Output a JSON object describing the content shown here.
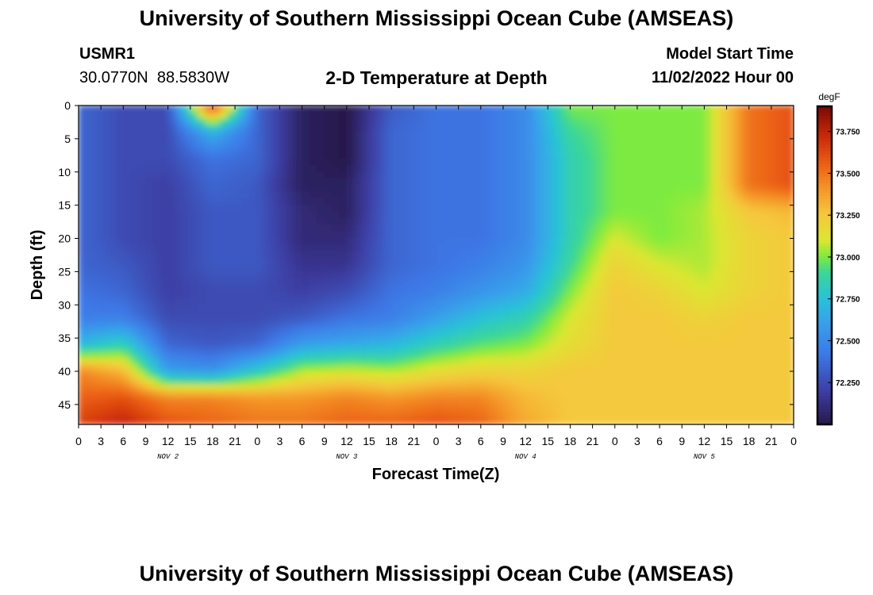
{
  "page": {
    "title": "University of Southern Mississippi Ocean Cube (AMSEAS)",
    "footer_title": "University of Southern Mississippi Ocean Cube (AMSEAS)",
    "station_id": "USMR1",
    "station_coords": "30.0770N  88.5830W",
    "plot_title": "2-D Temperature at Depth",
    "model_start_label": "Model Start Time",
    "model_start_value": "11/02/2022 Hour 00"
  },
  "chart_data": {
    "type": "heatmap",
    "title": "2-D Temperature at Depth",
    "xlabel": "Forecast Time(Z)",
    "ylabel": "Depth (ft)",
    "x_unit": "forecast hour",
    "xlim": [
      0,
      96
    ],
    "ylim": [
      48,
      0
    ],
    "x_tick_labels": [
      "0",
      "3",
      "6",
      "9",
      "12",
      "15",
      "18",
      "21",
      "0",
      "3",
      "6",
      "9",
      "12",
      "15",
      "18",
      "21",
      "0",
      "3",
      "6",
      "9",
      "12",
      "15",
      "18",
      "21",
      "0",
      "3",
      "6",
      "9",
      "12",
      "15",
      "18",
      "21",
      "0"
    ],
    "day_labels": [
      "NOV 2",
      "NOV 3",
      "NOV 4",
      "NOV 5"
    ],
    "y_ticks": [
      0,
      5,
      10,
      15,
      20,
      25,
      30,
      35,
      40,
      45
    ],
    "colorbar": {
      "label": "degF",
      "min": 72.0,
      "max": 73.9,
      "ticks": [
        73.75,
        73.5,
        73.25,
        73.0,
        72.75,
        72.5,
        72.25
      ],
      "tick_labels": [
        "73.750",
        "73.500",
        "73.250",
        "73.000",
        "72.750",
        "72.500",
        "72.250"
      ]
    },
    "grid": false,
    "depths_ft": [
      0,
      4,
      8,
      12,
      16,
      20,
      24,
      28,
      32,
      36,
      40,
      44,
      48
    ],
    "hours": [
      0,
      6,
      12,
      18,
      24,
      30,
      36,
      42,
      48,
      54,
      60,
      66,
      72,
      78,
      84,
      90,
      96
    ],
    "temperature_degF": [
      [
        72.35,
        72.25,
        72.25,
        73.75,
        72.35,
        72.05,
        72.0,
        72.3,
        72.4,
        72.4,
        72.5,
        73.0,
        73.0,
        73.0,
        73.0,
        73.5,
        73.6
      ],
      [
        72.35,
        72.25,
        72.25,
        72.7,
        72.35,
        72.05,
        72.0,
        72.35,
        72.4,
        72.4,
        72.5,
        72.9,
        73.0,
        73.0,
        73.0,
        73.5,
        73.6
      ],
      [
        72.35,
        72.25,
        72.25,
        72.4,
        72.35,
        72.05,
        72.0,
        72.35,
        72.4,
        72.4,
        72.5,
        72.85,
        73.0,
        73.0,
        73.0,
        73.5,
        73.6
      ],
      [
        72.35,
        72.25,
        72.2,
        72.35,
        72.3,
        72.05,
        72.05,
        72.35,
        72.4,
        72.4,
        72.5,
        72.85,
        73.0,
        73.0,
        73.0,
        73.5,
        73.6
      ],
      [
        72.35,
        72.25,
        72.2,
        72.3,
        72.3,
        72.1,
        72.05,
        72.35,
        72.4,
        72.4,
        72.5,
        72.85,
        73.0,
        73.0,
        73.05,
        73.25,
        73.3
      ],
      [
        72.35,
        72.25,
        72.2,
        72.3,
        72.3,
        72.1,
        72.1,
        72.35,
        72.4,
        72.4,
        72.5,
        72.85,
        73.1,
        73.0,
        73.05,
        73.2,
        73.25
      ],
      [
        72.35,
        72.3,
        72.2,
        72.3,
        72.3,
        72.15,
        72.15,
        72.35,
        72.4,
        72.45,
        72.55,
        72.9,
        73.2,
        73.1,
        73.05,
        73.2,
        73.25
      ],
      [
        72.4,
        72.35,
        72.2,
        72.25,
        72.25,
        72.2,
        72.25,
        72.4,
        72.45,
        72.55,
        72.65,
        73.0,
        73.25,
        73.2,
        73.1,
        73.2,
        73.25
      ],
      [
        72.45,
        72.45,
        72.25,
        72.25,
        72.25,
        72.3,
        72.4,
        72.45,
        72.6,
        72.75,
        72.85,
        73.1,
        73.25,
        73.25,
        73.2,
        73.25,
        73.25
      ],
      [
        72.7,
        72.85,
        72.35,
        72.3,
        72.35,
        72.6,
        72.65,
        72.7,
        72.85,
        72.95,
        73.0,
        73.15,
        73.25,
        73.25,
        73.25,
        73.25,
        73.25
      ],
      [
        73.45,
        73.3,
        72.6,
        72.55,
        72.8,
        73.05,
        73.1,
        73.05,
        73.15,
        73.2,
        73.2,
        73.25,
        73.25,
        73.25,
        73.25,
        73.25,
        73.25
      ],
      [
        73.55,
        73.6,
        73.45,
        73.45,
        73.4,
        73.4,
        73.45,
        73.4,
        73.45,
        73.45,
        73.3,
        73.25,
        73.25,
        73.25,
        73.25,
        73.25,
        73.25
      ],
      [
        73.65,
        73.75,
        73.6,
        73.55,
        73.5,
        73.5,
        73.55,
        73.55,
        73.6,
        73.55,
        73.35,
        73.25,
        73.25,
        73.25,
        73.25,
        73.25,
        73.25
      ]
    ]
  }
}
